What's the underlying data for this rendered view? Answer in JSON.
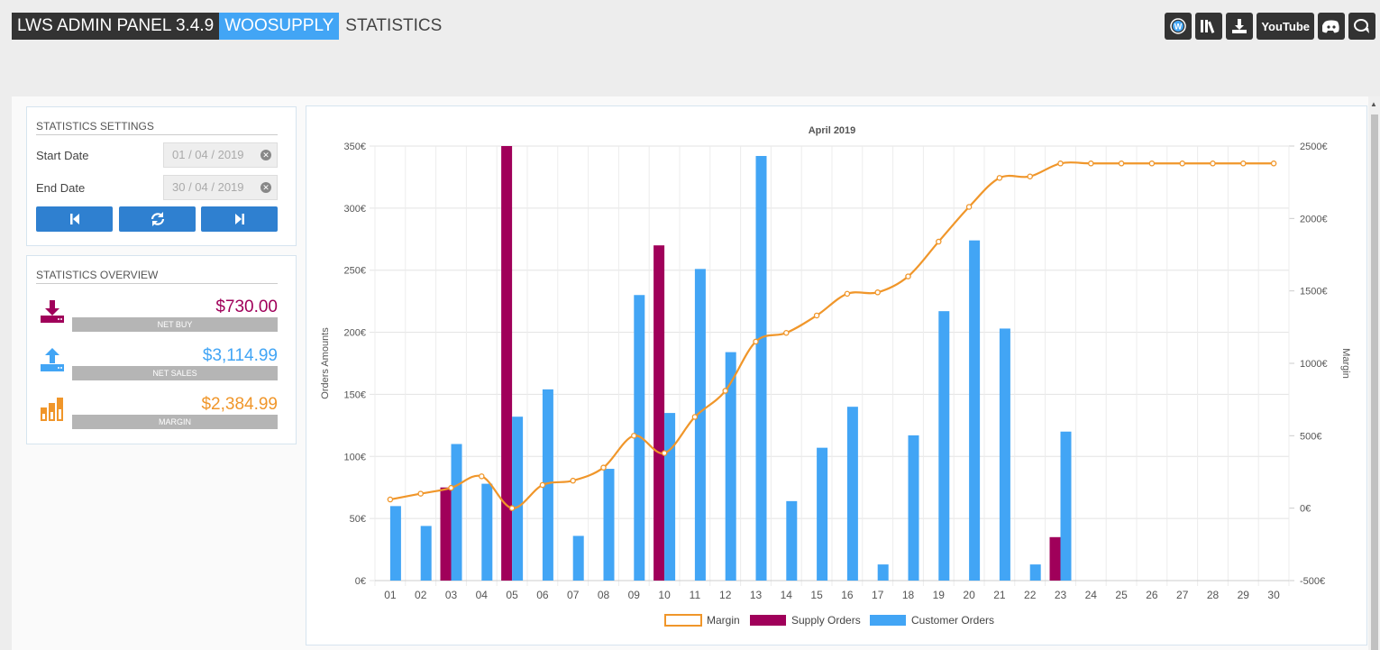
{
  "header": {
    "product": "LWS ADMIN PANEL 3.4.9",
    "plugin": "WOOSUPPLY",
    "page": "STATISTICS",
    "icons": [
      "wordpress-icon",
      "library-icon",
      "download-icon",
      "youtube-icon",
      "discord-icon",
      "chat-icon"
    ],
    "youtube_label": "YouTube"
  },
  "settings": {
    "title": "STATISTICS SETTINGS",
    "start_label": "Start Date",
    "start_value": "01 / 04 / 2019",
    "end_label": "End Date",
    "end_value": "30 / 04 / 2019"
  },
  "overview": {
    "title": "STATISTICS OVERVIEW",
    "net_buy_value": "$730.00",
    "net_buy_label": "NET BUY",
    "net_sales_value": "$3,114.99",
    "net_sales_label": "NET SALES",
    "margin_value": "$2,384.99",
    "margin_label": "MARGIN"
  },
  "colors": {
    "accent": "#42a5f5",
    "supply": "#a0005a",
    "customer": "#42a5f5",
    "margin": "#f0962a",
    "buy_text": "#a0005a",
    "sales_text": "#42a5f5",
    "margin_text": "#f0962a"
  },
  "chart_data": {
    "type": "bar",
    "title": "April 2019",
    "categories": [
      "01",
      "02",
      "03",
      "04",
      "05",
      "06",
      "07",
      "08",
      "09",
      "10",
      "11",
      "12",
      "13",
      "14",
      "15",
      "16",
      "17",
      "18",
      "19",
      "20",
      "21",
      "22",
      "23",
      "24",
      "25",
      "26",
      "27",
      "28",
      "29",
      "30"
    ],
    "ylabel": "Orders Amounts",
    "y2label": "Margin",
    "ylim": [
      0,
      350
    ],
    "y2lim": [
      -500,
      2500
    ],
    "yticks": [
      "0€",
      "50€",
      "100€",
      "150€",
      "200€",
      "250€",
      "300€",
      "350€"
    ],
    "y2ticks": [
      "-500€",
      "0€",
      "500€",
      "1000€",
      "1500€",
      "2000€",
      "2500€"
    ],
    "legend_position": "bottom",
    "series": [
      {
        "name": "Margin",
        "type": "line",
        "values": [
          60,
          100,
          140,
          220,
          0,
          160,
          190,
          280,
          500,
          380,
          630,
          810,
          1150,
          1210,
          1330,
          1480,
          1490,
          1600,
          1840,
          2080,
          2280,
          2290,
          2380,
          2380,
          2380,
          2380,
          2380,
          2380,
          2380,
          2380
        ]
      },
      {
        "name": "Supply Orders",
        "type": "bar",
        "values": [
          0,
          0,
          75,
          0,
          350,
          0,
          0,
          0,
          0,
          270,
          0,
          0,
          0,
          0,
          0,
          0,
          0,
          0,
          0,
          0,
          0,
          0,
          35,
          0,
          0,
          0,
          0,
          0,
          0,
          0
        ]
      },
      {
        "name": "Customer Orders",
        "type": "bar",
        "values": [
          60,
          44,
          110,
          78,
          132,
          154,
          36,
          90,
          230,
          135,
          251,
          184,
          342,
          64,
          107,
          140,
          13,
          117,
          217,
          274,
          203,
          13,
          120,
          0,
          0,
          0,
          0,
          0,
          0,
          0
        ]
      }
    ]
  }
}
